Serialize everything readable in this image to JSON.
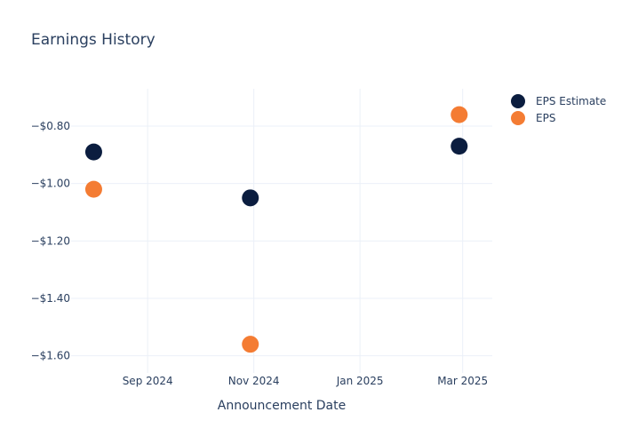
{
  "chart_data": {
    "type": "scatter",
    "title": "Earnings History",
    "xlabel": "Announcement Date",
    "ylabel": "",
    "x_axis_type": "date",
    "xlim": [
      "2024-07-19",
      "2025-03-18"
    ],
    "ylim": [
      -1.66,
      -0.67
    ],
    "x_ticks": [
      {
        "value": "2024-09-01",
        "label": "Sep 2024"
      },
      {
        "value": "2024-11-01",
        "label": "Nov 2024"
      },
      {
        "value": "2025-01-01",
        "label": "Jan 2025"
      },
      {
        "value": "2025-03-01",
        "label": "Mar 2025"
      }
    ],
    "y_ticks": [
      {
        "value": -0.8,
        "label": "−$0.80"
      },
      {
        "value": -1.0,
        "label": "−$1.00"
      },
      {
        "value": -1.2,
        "label": "−$1.20"
      },
      {
        "value": -1.4,
        "label": "−$1.40"
      },
      {
        "value": -1.6,
        "label": "−$1.60"
      }
    ],
    "grid": true,
    "legend_position": "top-right",
    "series": [
      {
        "name": "EPS Estimate",
        "color": "#0b1d3f",
        "points": [
          {
            "x": "2024-08-01",
            "y": -0.89
          },
          {
            "x": "2024-10-30",
            "y": -1.05
          },
          {
            "x": "2025-02-27",
            "y": -0.87
          }
        ]
      },
      {
        "name": "EPS",
        "color": "#f47c33",
        "points": [
          {
            "x": "2024-08-01",
            "y": -1.02
          },
          {
            "x": "2024-10-30",
            "y": -1.56
          },
          {
            "x": "2025-02-27",
            "y": -0.76
          }
        ]
      }
    ]
  }
}
